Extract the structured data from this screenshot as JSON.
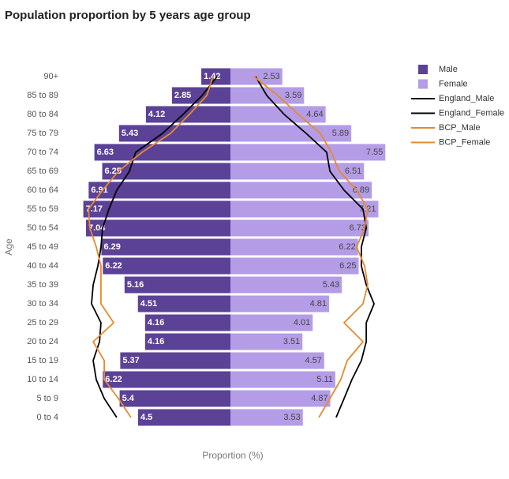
{
  "chart_data": {
    "type": "pyramid",
    "title": "Population proportion by 5 years age group",
    "y_label": "Age",
    "x_label": "Proportion (%)",
    "categories": [
      "0 to 4",
      "5 to 9",
      "10 to 14",
      "15 to 19",
      "20 to 24",
      "25 to 29",
      "30 to 34",
      "35 to 39",
      "40 to 44",
      "45 to 49",
      "50 to 54",
      "55 to 59",
      "60 to 64",
      "65 to 69",
      "70 to 74",
      "75 to 79",
      "80 to 84",
      "85 to 89",
      "90+"
    ],
    "xlim": [
      0,
      8
    ],
    "series": [
      {
        "name": "Male",
        "kind": "bar",
        "side": "left",
        "color": "#5b4296",
        "values": [
          4.5,
          5.4,
          6.22,
          5.37,
          4.16,
          4.16,
          4.51,
          5.16,
          6.22,
          6.29,
          7.04,
          7.17,
          6.91,
          6.25,
          6.63,
          5.43,
          4.12,
          2.85,
          1.42
        ]
      },
      {
        "name": "Female",
        "kind": "bar",
        "side": "right",
        "color": "#b49de6",
        "values": [
          3.53,
          4.87,
          5.11,
          4.57,
          3.51,
          4.01,
          4.81,
          5.43,
          6.25,
          6.22,
          6.73,
          7.21,
          6.89,
          6.51,
          7.55,
          5.89,
          4.64,
          3.59,
          2.53
        ]
      },
      {
        "name": "England_Male",
        "kind": "line",
        "side": "left",
        "color": "#000000",
        "values": [
          5.54,
          6.15,
          6.54,
          6.69,
          6.38,
          6.31,
          6.77,
          6.69,
          6.46,
          6.31,
          6.23,
          5.92,
          5.54,
          4.92,
          4.62,
          3.31,
          2.31,
          1.38,
          0.65
        ]
      },
      {
        "name": "England_Female",
        "kind": "line",
        "side": "right",
        "color": "#000000",
        "values": [
          5.15,
          5.54,
          5.92,
          6.38,
          6.62,
          6.62,
          7.0,
          6.62,
          6.38,
          6.38,
          6.62,
          6.46,
          5.54,
          4.85,
          4.69,
          3.69,
          2.62,
          1.77,
          1.23
        ]
      },
      {
        "name": "BCP_Male",
        "kind": "line",
        "side": "left",
        "color": "#e8892e",
        "values": [
          4.85,
          5.46,
          6.15,
          6.15,
          6.69,
          5.69,
          6.31,
          6.31,
          6.31,
          6.54,
          6.85,
          6.92,
          6.23,
          5.46,
          4.31,
          2.92,
          2.0,
          1.15,
          0.85
        ]
      },
      {
        "name": "BCP_Female",
        "kind": "line",
        "side": "right",
        "color": "#e8892e",
        "values": [
          4.31,
          4.85,
          5.38,
          5.69,
          6.46,
          5.54,
          6.46,
          6.69,
          6.54,
          6.15,
          6.54,
          6.69,
          6.15,
          5.31,
          4.92,
          4.38,
          3.31,
          2.31,
          1.15
        ]
      }
    ]
  }
}
